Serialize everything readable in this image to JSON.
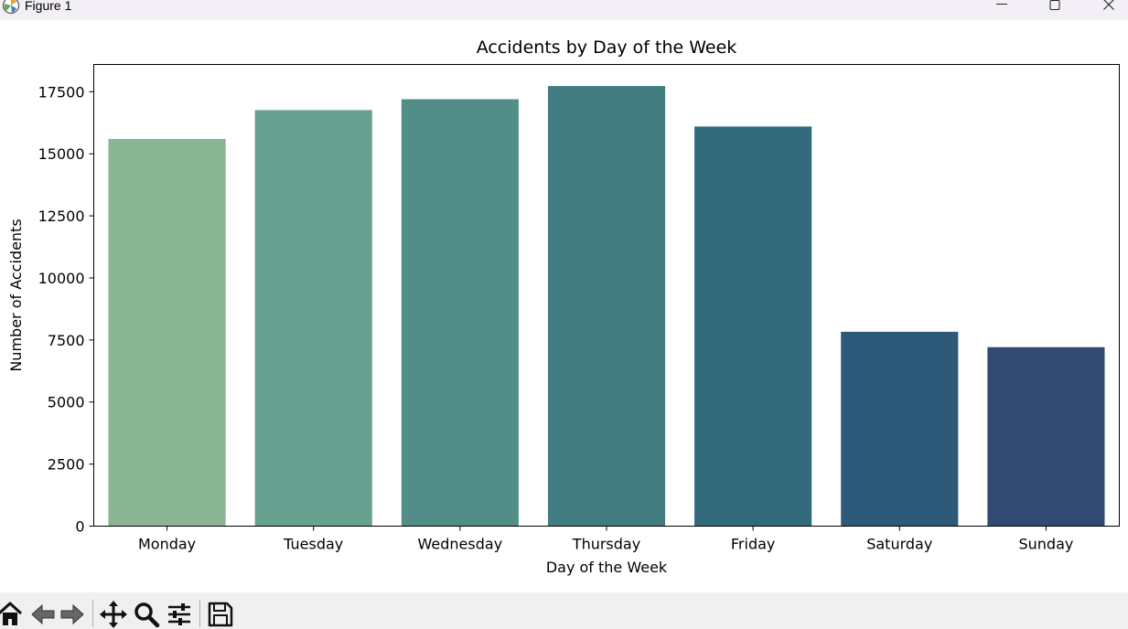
{
  "window": {
    "title": "Figure 1",
    "icons": [
      "matplotlib-logo-icon",
      "minimize-icon",
      "maximize-icon",
      "close-icon"
    ]
  },
  "toolbar": {
    "icons": [
      "home-icon",
      "back-arrow-icon",
      "forward-arrow-icon",
      "pan-icon",
      "zoom-icon",
      "configure-subplots-icon",
      "save-icon"
    ]
  },
  "chart_data": {
    "type": "bar",
    "title": "Accidents by Day of the Week",
    "xlabel": "Day of the Week",
    "ylabel": "Number of Accidents",
    "categories": [
      "Monday",
      "Tuesday",
      "Wednesday",
      "Thursday",
      "Friday",
      "Saturday",
      "Sunday"
    ],
    "values": [
      15600,
      16760,
      17200,
      17730,
      16100,
      7830,
      7210
    ],
    "colors": [
      "#89b594",
      "#68a18f",
      "#528e87",
      "#407c80",
      "#2f697a",
      "#2d5a78",
      "#324a71"
    ],
    "ylim": [
      0,
      18600
    ],
    "yticks": [
      0,
      2500,
      5000,
      7500,
      10000,
      12500,
      15000,
      17500
    ],
    "ytick_labels": [
      "0",
      "2500",
      "5000",
      "7500",
      "10000",
      "12500",
      "15000",
      "17500"
    ],
    "grid": false,
    "legend": "none"
  }
}
